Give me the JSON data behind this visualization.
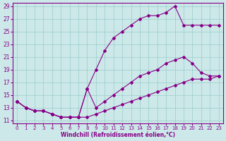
{
  "xlabel": "Windchill (Refroidissement éolien,°C)",
  "bg_color": "#cce8e8",
  "line_color": "#880088",
  "grid_color": "#99cccc",
  "xmin": 0,
  "xmax": 23,
  "ymin": 11,
  "ymax": 29,
  "yticks": [
    11,
    13,
    15,
    17,
    19,
    21,
    23,
    25,
    27,
    29
  ],
  "xticks": [
    0,
    1,
    2,
    3,
    4,
    5,
    6,
    7,
    8,
    9,
    10,
    11,
    12,
    13,
    14,
    15,
    16,
    17,
    18,
    19,
    20,
    21,
    22,
    23
  ],
  "line1_x": [
    0,
    1,
    2,
    3,
    4,
    5,
    6,
    7,
    8,
    9,
    10,
    11,
    12,
    13,
    14,
    15,
    16,
    17,
    18,
    19,
    20,
    21,
    22,
    23
  ],
  "line1_y": [
    14.0,
    13.0,
    12.5,
    12.5,
    12.0,
    11.5,
    11.5,
    11.5,
    11.5,
    12.0,
    12.5,
    13.0,
    13.5,
    14.0,
    14.5,
    15.0,
    15.5,
    16.0,
    16.5,
    17.0,
    17.5,
    17.5,
    17.5,
    18.0
  ],
  "line2_x": [
    0,
    1,
    2,
    3,
    4,
    5,
    6,
    7,
    8,
    9,
    10,
    11,
    12,
    13,
    14,
    15,
    16,
    17,
    18,
    19,
    20,
    21,
    22,
    23
  ],
  "line2_y": [
    14.0,
    13.0,
    12.5,
    12.5,
    12.0,
    11.5,
    11.5,
    11.5,
    16.0,
    19.0,
    22.0,
    24.0,
    25.0,
    26.0,
    27.0,
    27.5,
    27.5,
    28.0,
    29.0,
    26.0,
    26.0,
    26.0,
    26.0,
    26.0
  ],
  "line3_x": [
    0,
    1,
    2,
    3,
    4,
    5,
    6,
    7,
    8,
    9,
    10,
    11,
    12,
    13,
    14,
    15,
    16,
    17,
    18,
    19,
    20,
    21,
    22,
    23
  ],
  "line3_y": [
    14.0,
    13.0,
    12.5,
    12.5,
    12.0,
    11.5,
    11.5,
    11.5,
    16.0,
    13.0,
    14.0,
    15.0,
    16.0,
    17.0,
    18.0,
    18.5,
    19.0,
    20.0,
    20.5,
    21.0,
    20.0,
    18.5,
    18.0,
    18.0
  ]
}
